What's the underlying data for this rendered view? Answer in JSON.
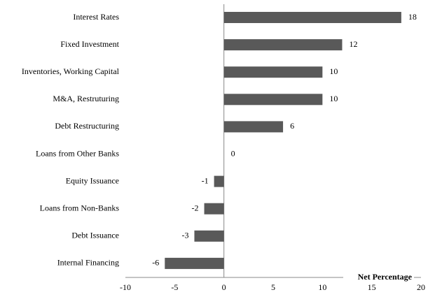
{
  "chart_data": {
    "type": "barh",
    "categories": [
      "Interest Rates",
      "Fixed Investment",
      "Inventories, Working Capital",
      "M&A, Restruturing",
      "Debt Restructuring",
      "Loans from Other Banks",
      "Equity Issuance",
      "Loans from Non-Banks",
      "Debt Issuance",
      "Internal Financing"
    ],
    "values": [
      18,
      12,
      10,
      10,
      6,
      0,
      -1,
      -2,
      -3,
      -6
    ],
    "color": "#595959",
    "xlabel": "Net Percentage",
    "xlim": [
      -10,
      20
    ],
    "xticks": [
      -10,
      -5,
      0,
      5,
      10,
      15,
      20
    ],
    "grid": false
  }
}
